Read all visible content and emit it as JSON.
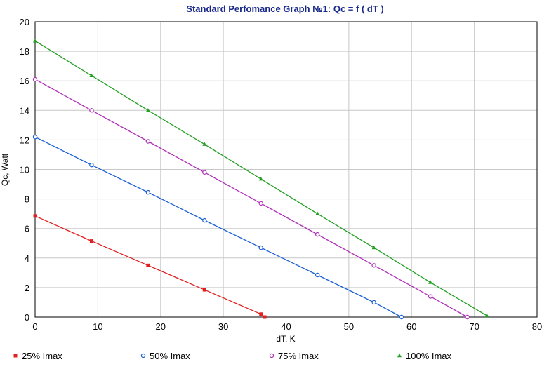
{
  "chart_data": {
    "type": "line",
    "title": "Standard Perfomance Graph №1: Qc = f ( dT )",
    "xlabel": "dT, K",
    "ylabel": "Qc, Watt",
    "xlim": [
      0,
      80
    ],
    "ylim": [
      0,
      20
    ],
    "x_ticks": [
      "0",
      "10",
      "20",
      "30",
      "40",
      "50",
      "60",
      "70",
      "80"
    ],
    "y_ticks": [
      "0",
      "2",
      "4",
      "6",
      "8",
      "10",
      "12",
      "14",
      "16",
      "18",
      "20"
    ],
    "grid": true,
    "legend_position": "bottom",
    "series": [
      {
        "name": "25% Imax",
        "color": "#e02020",
        "marker": "square",
        "points": [
          [
            0,
            6.85
          ],
          [
            9,
            5.15
          ],
          [
            18,
            3.5
          ],
          [
            27,
            1.85
          ],
          [
            36,
            0.2
          ],
          [
            36.6,
            0
          ]
        ]
      },
      {
        "name": "50% Imax",
        "color": "#1a5fd6",
        "marker": "circle",
        "points": [
          [
            0,
            12.2
          ],
          [
            9,
            10.3
          ],
          [
            18,
            8.45
          ],
          [
            27,
            6.55
          ],
          [
            36,
            4.7
          ],
          [
            45,
            2.85
          ],
          [
            54,
            1.0
          ],
          [
            58.4,
            0
          ]
        ]
      },
      {
        "name": "75% Imax",
        "color": "#b030b8",
        "marker": "circle",
        "points": [
          [
            0,
            16.1
          ],
          [
            9,
            14.0
          ],
          [
            18,
            11.9
          ],
          [
            27,
            9.8
          ],
          [
            36,
            7.7
          ],
          [
            45,
            5.6
          ],
          [
            54,
            3.5
          ],
          [
            63,
            1.4
          ],
          [
            68.9,
            0
          ]
        ]
      },
      {
        "name": "100% Imax",
        "color": "#22a022",
        "marker": "triangle",
        "points": [
          [
            0,
            18.7
          ],
          [
            9,
            16.35
          ],
          [
            18,
            14.0
          ],
          [
            27,
            11.7
          ],
          [
            36,
            9.35
          ],
          [
            45,
            7.0
          ],
          [
            54,
            4.7
          ],
          [
            63,
            2.35
          ],
          [
            72,
            0.1
          ]
        ]
      }
    ]
  }
}
